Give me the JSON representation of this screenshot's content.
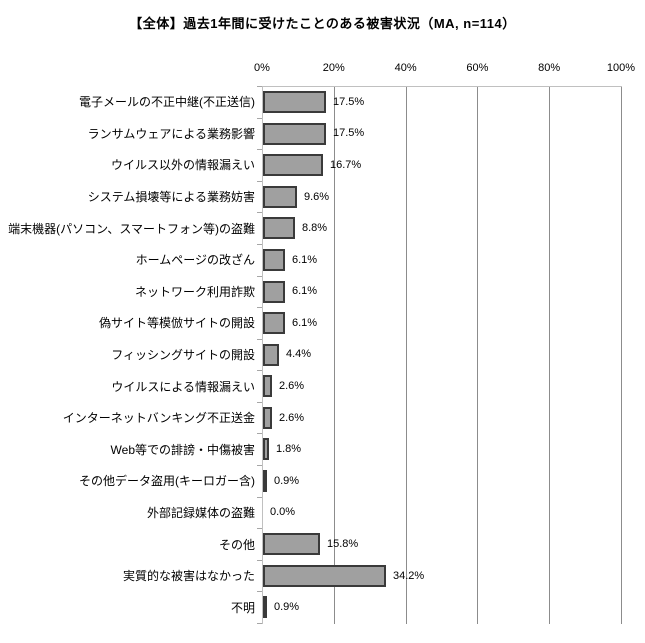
{
  "chart_data": {
    "type": "bar",
    "orientation": "horizontal",
    "title": "【全体】過去1年間に受けたことのある被害状況（MA, n=114）",
    "categories": [
      "電子メールの不正中継(不正送信)",
      "ランサムウェアによる業務影響",
      "ウイルス以外の情報漏えい",
      "システム損壊等による業務妨害",
      "端末機器(パソコン、スマートフォン等)の盗難",
      "ホームページの改ざん",
      "ネットワーク利用詐欺",
      "偽サイト等模倣サイトの開設",
      "フィッシングサイトの開設",
      "ウイルスによる情報漏えい",
      "インターネットバンキング不正送金",
      "Web等での誹謗・中傷被害",
      "その他データ盗用(キーロガー含)",
      "外部記録媒体の盗難",
      "その他",
      "実質的な被害はなかった",
      "不明"
    ],
    "values": [
      17.5,
      17.5,
      16.7,
      9.6,
      8.8,
      6.1,
      6.1,
      6.1,
      4.4,
      2.6,
      2.6,
      1.8,
      0.9,
      0.0,
      15.8,
      34.2,
      0.9
    ],
    "value_labels": [
      "17.5%",
      "17.5%",
      "16.7%",
      "9.6%",
      "8.8%",
      "6.1%",
      "6.1%",
      "6.1%",
      "4.4%",
      "2.6%",
      "2.6%",
      "1.8%",
      "0.9%",
      "0.0%",
      "15.8%",
      "34.2%",
      "0.9%"
    ],
    "xlabel": "",
    "ylabel": "",
    "xlim": [
      0,
      100
    ],
    "x_ticks": [
      "0%",
      "20%",
      "40%",
      "60%",
      "80%",
      "100%"
    ],
    "grid": true,
    "legend": false,
    "colors": {
      "bar_fill": "#A0A0A0",
      "bar_border": "#3A3A3A",
      "gridline": "#8C8C8C",
      "axis_line": "#C0C0C0",
      "tick": "#A6A6A6",
      "text": "#000000",
      "background": "#FFFFFF"
    }
  }
}
